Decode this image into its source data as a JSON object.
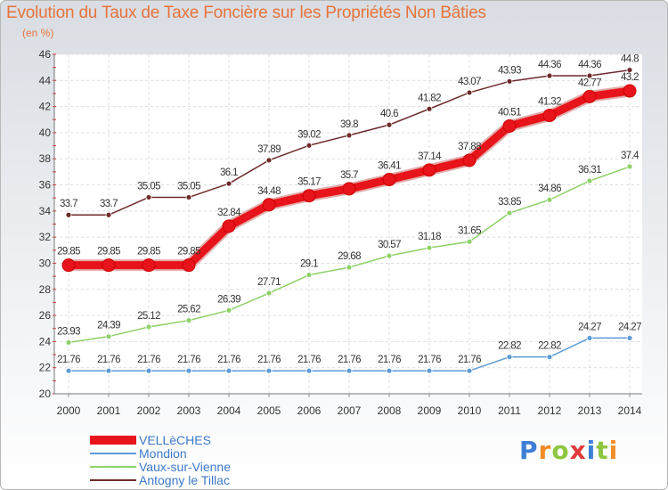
{
  "header": {
    "title": "Evolution du Taux de Taxe Foncière sur les Propriétés Non Bâties",
    "unit": "(en %)"
  },
  "logo": {
    "text": "Proxiti",
    "colors": [
      "#3d7fd6",
      "#f28c28",
      "#8dc63f",
      "#e03a3a",
      "#3d7fd6",
      "#8dc63f",
      "#f28c28"
    ]
  },
  "chart_data": {
    "type": "line",
    "title": "Evolution du Taux de Taxe Foncière sur les Propriétés Non Bâties",
    "ylabel": "(en %)",
    "xlabel": "",
    "x": [
      "2000",
      "2001",
      "2002",
      "2003",
      "2004",
      "2005",
      "2006",
      "2007",
      "2008",
      "2009",
      "2010",
      "2011",
      "2012",
      "2013",
      "2014"
    ],
    "ylim": [
      20,
      46
    ],
    "yticks": [
      20,
      22,
      24,
      26,
      28,
      30,
      32,
      34,
      36,
      38,
      40,
      42,
      44,
      46
    ],
    "grid": true,
    "legend_position": "bottom-left",
    "series": [
      {
        "name": "Antogny le Tillac",
        "color": "#6e2a2a",
        "values": [
          33.7,
          33.7,
          35.05,
          35.05,
          36.1,
          37.89,
          39.02,
          39.8,
          40.6,
          41.82,
          43.07,
          43.93,
          44.36,
          44.36,
          44.8
        ],
        "labels": [
          "33.7",
          "33.7",
          "35.05",
          "35.05",
          "36.1",
          "37.89",
          "39.02",
          "39.8",
          "40.6",
          "41.82",
          "43.07",
          "43.93",
          "44.36",
          "44.36",
          "44.8"
        ]
      },
      {
        "name": "Vaux-sur-Vienne",
        "color": "#8fd16a",
        "values": [
          23.93,
          24.39,
          25.12,
          25.62,
          26.39,
          27.71,
          29.1,
          29.68,
          30.57,
          31.18,
          31.65,
          33.85,
          34.86,
          36.31,
          37.4
        ],
        "labels": [
          "23.93",
          "24.39",
          "25.12",
          "25.62",
          "26.39",
          "27.71",
          "29.1",
          "29.68",
          "30.57",
          "31.18",
          "31.65",
          "33.85",
          "34.86",
          "36.31",
          "37.4"
        ]
      },
      {
        "name": "Mondion",
        "color": "#5b9bd5",
        "values": [
          21.76,
          21.76,
          21.76,
          21.76,
          21.76,
          21.76,
          21.76,
          21.76,
          21.76,
          21.76,
          21.76,
          22.82,
          22.82,
          24.27,
          24.27
        ],
        "labels": [
          "21.76",
          "21.76",
          "21.76",
          "21.76",
          "21.76",
          "21.76",
          "21.76",
          "21.76",
          "21.76",
          "21.76",
          "21.76",
          "22.82",
          "22.82",
          "24.27",
          "24.27"
        ]
      },
      {
        "name": "VELLèCHES",
        "color": "#e8141b",
        "values": [
          29.85,
          29.85,
          29.85,
          29.85,
          32.84,
          34.48,
          35.17,
          35.7,
          36.41,
          37.14,
          37.88,
          40.51,
          41.32,
          42.77,
          43.2
        ],
        "labels": [
          "29.85",
          "29.85",
          "29.85",
          "29.85",
          "32.84",
          "34.48",
          "35.17",
          "35.7",
          "36.41",
          "37.14",
          "37.88",
          "40.51",
          "41.32",
          "42.77",
          "43.2"
        ]
      }
    ]
  },
  "legend": {
    "items": [
      {
        "label": "VELLèCHES",
        "color": "#e8141b",
        "weight": "thick"
      },
      {
        "label": "Mondion",
        "color": "#5b9bd5",
        "weight": "thin"
      },
      {
        "label": "Vaux-sur-Vienne",
        "color": "#8fd16a",
        "weight": "thin"
      },
      {
        "label": "Antogny le Tillac",
        "color": "#6e2a2a",
        "weight": "thin"
      }
    ]
  }
}
